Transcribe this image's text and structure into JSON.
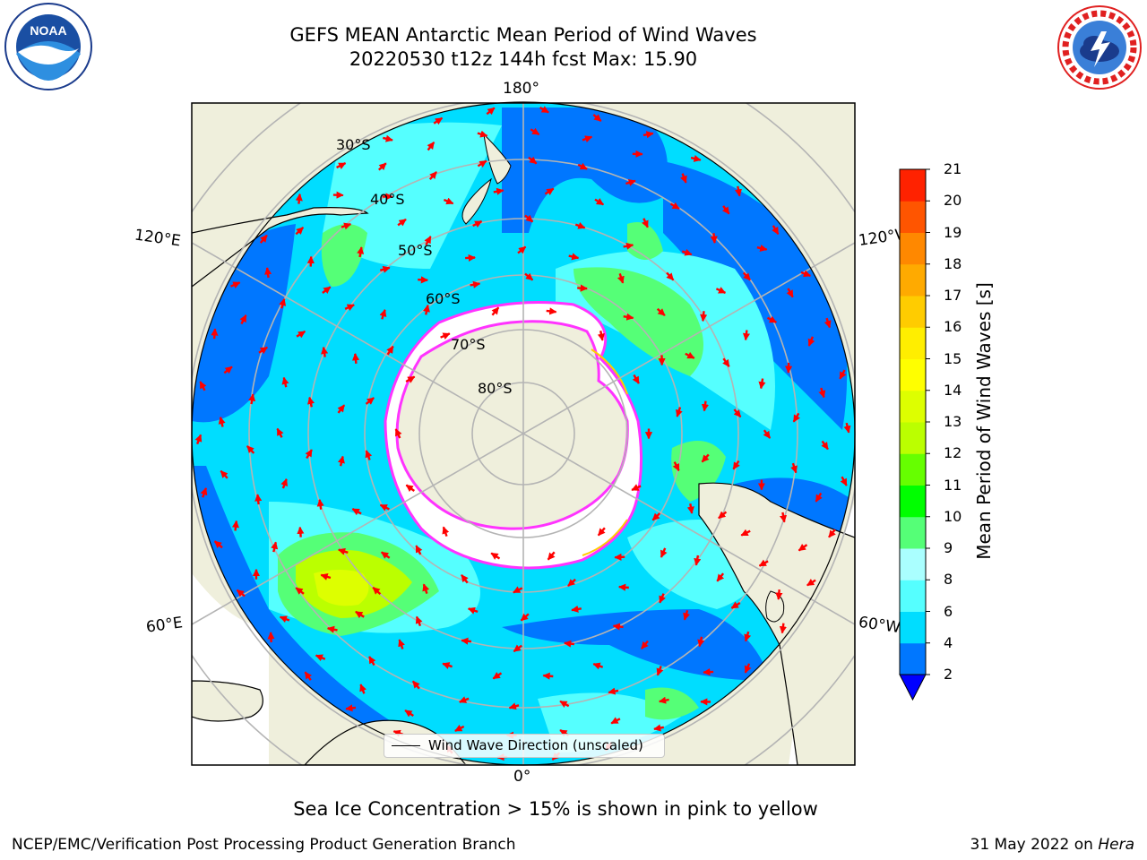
{
  "title": {
    "line1": "GEFS MEAN Antarctic Mean Period of Wind Waves",
    "line2": "20220530 t12z 144h fcst   Max: 15.90"
  },
  "logos": {
    "left": {
      "icon": "noaa-logo",
      "text": "NOAA"
    },
    "right": {
      "icon": "national-weather-service-logo",
      "text": "NATIONAL WEATHER SERVICE"
    }
  },
  "map": {
    "projection": "south-polar-stereographic",
    "longitude_labels": [
      "180°",
      "120°E",
      "120°W",
      "60°E",
      "60°W",
      "0°"
    ],
    "latitude_labels": [
      "30°S",
      "40°S",
      "50°S",
      "60°S",
      "70°S",
      "80°S"
    ],
    "colors": {
      "land": "#efefdc",
      "sea_ice": "#ffffff",
      "ice_edge": "#ff33ff",
      "arrow": "#ff0000",
      "grid": "#b4b4b4"
    }
  },
  "legend": {
    "label": "Wind Wave Direction (unscaled)"
  },
  "chart_data": {
    "type": "heatmap",
    "title": "GEFS MEAN Antarctic Mean Period of Wind Waves",
    "subtitle": "20220530 t12z 144h fcst   Max: 15.90",
    "colorbar": {
      "label": "Mean Period of Wind Waves [s]",
      "ticks": [
        "2",
        "4",
        "6",
        "8",
        "9",
        "10",
        "11",
        "12",
        "13",
        "14",
        "15",
        "16",
        "17",
        "18",
        "19",
        "20",
        "21"
      ],
      "bounds": [
        2,
        4,
        6,
        8,
        9,
        10,
        11,
        12,
        13,
        14,
        15,
        16,
        17,
        18,
        19,
        20,
        21
      ],
      "colors": [
        "#0077ff",
        "#00ddff",
        "#55ffff",
        "#aaffff",
        "#55ff77",
        "#00ff00",
        "#66ff00",
        "#bbff00",
        "#ddff00",
        "#ffff00",
        "#ffee00",
        "#ffcc00",
        "#ffaa00",
        "#ff8800",
        "#ff5500",
        "#ff2200"
      ],
      "under_color": "#0000ff",
      "extend": "min"
    },
    "max": 15.9
  },
  "footer": {
    "note": "Sea Ice Concentration > 15% is shown in pink to yellow",
    "credit_left": "NCEP/EMC/Verification Post Processing Product Generation Branch",
    "credit_date": "31 May 2022 on",
    "credit_machine": "Hera"
  }
}
